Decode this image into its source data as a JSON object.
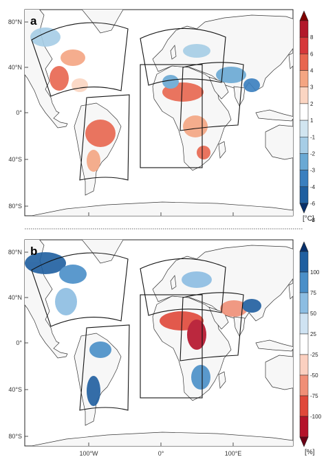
{
  "panels": [
    {
      "id": "a",
      "letter": "a",
      "unit": "[°C]",
      "colorbar": {
        "labels": [
          "8",
          "6",
          "4",
          "3",
          "2",
          "1",
          "-1",
          "-2",
          "-3",
          "-4",
          "-6",
          "-8"
        ],
        "colors": [
          "#7f0000",
          "#b2182b",
          "#d6373a",
          "#e8664f",
          "#f4a582",
          "#fbd5c2",
          "#ffffff",
          "#d1e5f0",
          "#a6cde6",
          "#6aa9d4",
          "#3a7fbf",
          "#1f5fa0",
          "#08306b"
        ]
      },
      "lat_labels": [
        "80°N",
        "40°N",
        "0°",
        "40°S",
        "80°S"
      ]
    },
    {
      "id": "b",
      "letter": "b",
      "unit": "[%]",
      "colorbar": {
        "labels": [
          "100",
          "75",
          "50",
          "25",
          "-25",
          "-50",
          "-75",
          "-100"
        ],
        "colors": [
          "#08306b",
          "#1f5fa0",
          "#4a8fc8",
          "#8cbde2",
          "#cfe3f2",
          "#ffffff",
          "#fbd0c0",
          "#f08f77",
          "#e0483a",
          "#b5122a",
          "#6b0016"
        ]
      },
      "lat_labels": [
        "80°N",
        "40°N",
        "0°",
        "40°S",
        "80°S"
      ]
    }
  ],
  "lon_labels": [
    "100°W",
    "0°",
    "100°E"
  ]
}
